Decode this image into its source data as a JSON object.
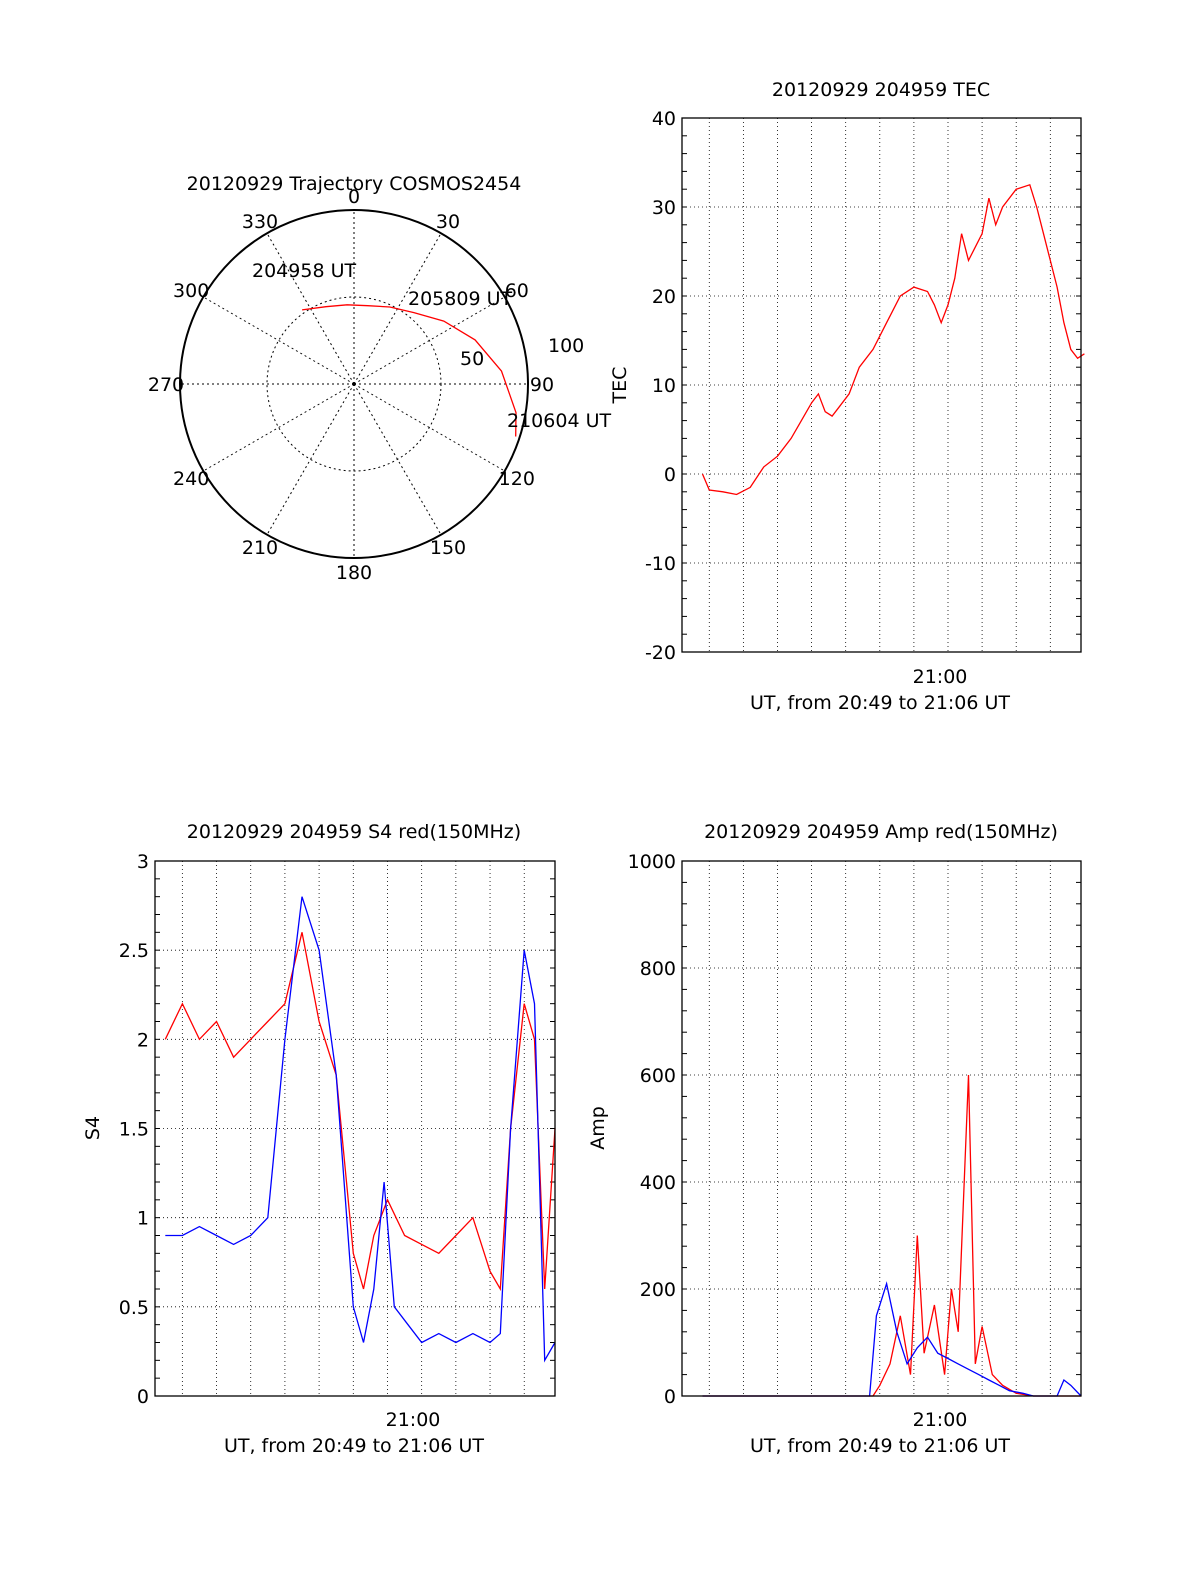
{
  "chart_data": [
    {
      "id": "polar",
      "type": "polar",
      "title": "20120929 Trajectory COSMOS2454",
      "azimuth_labels": [
        "0",
        "30",
        "60",
        "90",
        "120",
        "150",
        "180",
        "210",
        "240",
        "270",
        "300",
        "330"
      ],
      "elevation_labels": [
        "50",
        "100"
      ],
      "trajectory_color": "#ff0000",
      "trajectory": [
        {
          "az": 325,
          "el": 33
        },
        {
          "az": 340,
          "el": 30
        },
        {
          "az": 355,
          "el": 29
        },
        {
          "az": 10,
          "el": 29
        },
        {
          "az": 25,
          "el": 31
        },
        {
          "az": 40,
          "el": 34
        },
        {
          "az": 55,
          "el": 40
        },
        {
          "az": 70,
          "el": 47
        },
        {
          "az": 85,
          "el": 54
        },
        {
          "az": 100,
          "el": 60
        },
        {
          "az": 108,
          "el": 62
        }
      ],
      "annotations": [
        {
          "text": "204958 UT"
        },
        {
          "text": "205809 UT"
        },
        {
          "text": "210604 UT"
        }
      ]
    },
    {
      "id": "tec",
      "type": "line",
      "title": "20120929 204959 TEC",
      "xlabel": "UT, from 20:49 to 21:06 UT",
      "ylabel": "TEC",
      "xlim": [
        -5.8,
        5.9
      ],
      "ylim": [
        -20,
        40
      ],
      "ytick_labels": [
        "-20",
        "-10",
        "0",
        "10",
        "20",
        "30",
        "40"
      ],
      "xtick_label": "21:00",
      "grid": true,
      "series": [
        {
          "color": "#ff0000",
          "points": [
            [
              -5.2,
              0
            ],
            [
              -5.0,
              -1.8
            ],
            [
              -4.6,
              -2
            ],
            [
              -4.2,
              -2.3
            ],
            [
              -3.8,
              -1.5
            ],
            [
              -3.4,
              0.8
            ],
            [
              -3.0,
              2
            ],
            [
              -2.6,
              4
            ],
            [
              -2.3,
              6
            ],
            [
              -2.0,
              8
            ],
            [
              -1.8,
              9
            ],
            [
              -1.6,
              7
            ],
            [
              -1.4,
              6.5
            ],
            [
              -1.2,
              7.5
            ],
            [
              -0.9,
              9
            ],
            [
              -0.6,
              12
            ],
            [
              -0.2,
              14
            ],
            [
              0.2,
              17
            ],
            [
              0.6,
              20
            ],
            [
              1.0,
              21
            ],
            [
              1.4,
              20.5
            ],
            [
              1.6,
              19
            ],
            [
              1.8,
              17
            ],
            [
              2.0,
              19
            ],
            [
              2.2,
              22
            ],
            [
              2.4,
              27
            ],
            [
              2.6,
              24
            ],
            [
              3.0,
              27
            ],
            [
              3.2,
              31
            ],
            [
              3.4,
              28
            ],
            [
              3.6,
              30
            ],
            [
              4.0,
              32
            ],
            [
              4.4,
              32.5
            ],
            [
              4.6,
              30
            ],
            [
              4.8,
              27
            ],
            [
              5.0,
              24
            ],
            [
              5.2,
              21
            ],
            [
              5.4,
              17
            ],
            [
              5.6,
              14
            ],
            [
              5.8,
              13
            ],
            [
              6.0,
              13.5
            ]
          ]
        }
      ]
    },
    {
      "id": "s4",
      "type": "line",
      "title": "20120929 204959 S4 red(150MHz)",
      "xlabel": "UT, from 20:49 to 21:06 UT",
      "ylabel": "S4",
      "xlim": [
        -5.8,
        5.9
      ],
      "ylim": [
        0,
        3
      ],
      "ytick_labels": [
        "0",
        "0.5",
        "1",
        "1.5",
        "2",
        "2.5",
        "3"
      ],
      "xtick_label": "21:00",
      "grid": true,
      "series": [
        {
          "color": "#ff0000",
          "points": [
            [
              -5.5,
              2.0
            ],
            [
              -5.0,
              2.2
            ],
            [
              -4.5,
              2.0
            ],
            [
              -4.0,
              2.1
            ],
            [
              -3.5,
              1.9
            ],
            [
              -3.0,
              2.0
            ],
            [
              -2.5,
              2.1
            ],
            [
              -2.0,
              2.2
            ],
            [
              -1.5,
              2.6
            ],
            [
              -1.0,
              2.1
            ],
            [
              -0.5,
              1.8
            ],
            [
              -0.2,
              1.2
            ],
            [
              0.0,
              0.8
            ],
            [
              0.3,
              0.6
            ],
            [
              0.6,
              0.9
            ],
            [
              1.0,
              1.1
            ],
            [
              1.5,
              0.9
            ],
            [
              2.0,
              0.85
            ],
            [
              2.5,
              0.8
            ],
            [
              3.0,
              0.9
            ],
            [
              3.5,
              1.0
            ],
            [
              4.0,
              0.7
            ],
            [
              4.3,
              0.6
            ],
            [
              4.6,
              1.5
            ],
            [
              5.0,
              2.2
            ],
            [
              5.3,
              2.0
            ],
            [
              5.6,
              0.6
            ],
            [
              5.9,
              1.5
            ]
          ]
        },
        {
          "color": "#0000ff",
          "points": [
            [
              -5.5,
              0.9
            ],
            [
              -5.0,
              0.9
            ],
            [
              -4.5,
              0.95
            ],
            [
              -4.0,
              0.9
            ],
            [
              -3.5,
              0.85
            ],
            [
              -3.0,
              0.9
            ],
            [
              -2.5,
              1.0
            ],
            [
              -2.0,
              2.0
            ],
            [
              -1.5,
              2.8
            ],
            [
              -1.0,
              2.5
            ],
            [
              -0.5,
              1.8
            ],
            [
              0.0,
              0.5
            ],
            [
              0.3,
              0.3
            ],
            [
              0.6,
              0.6
            ],
            [
              0.9,
              1.2
            ],
            [
              1.2,
              0.5
            ],
            [
              1.6,
              0.4
            ],
            [
              2.0,
              0.3
            ],
            [
              2.5,
              0.35
            ],
            [
              3.0,
              0.3
            ],
            [
              3.5,
              0.35
            ],
            [
              4.0,
              0.3
            ],
            [
              4.3,
              0.35
            ],
            [
              4.6,
              1.5
            ],
            [
              5.0,
              2.5
            ],
            [
              5.3,
              2.2
            ],
            [
              5.6,
              0.2
            ],
            [
              5.9,
              0.3
            ]
          ]
        }
      ]
    },
    {
      "id": "amp",
      "type": "line",
      "title": "20120929 204959 Amp red(150MHz)",
      "xlabel": "UT, from 20:49 to 21:06 UT",
      "ylabel": "Amp",
      "xlim": [
        -5.8,
        5.9
      ],
      "ylim": [
        0,
        1000
      ],
      "ytick_labels": [
        "0",
        "200",
        "400",
        "600",
        "800",
        "1000"
      ],
      "xtick_label": "21:00",
      "grid": true,
      "series": [
        {
          "color": "#ff0000",
          "points": [
            [
              -5.2,
              0
            ],
            [
              -0.2,
              0
            ],
            [
              0.0,
              20
            ],
            [
              0.3,
              60
            ],
            [
              0.6,
              150
            ],
            [
              0.9,
              40
            ],
            [
              1.1,
              300
            ],
            [
              1.3,
              80
            ],
            [
              1.6,
              170
            ],
            [
              1.9,
              40
            ],
            [
              2.1,
              200
            ],
            [
              2.3,
              120
            ],
            [
              2.6,
              600
            ],
            [
              2.8,
              60
            ],
            [
              3.0,
              130
            ],
            [
              3.3,
              40
            ],
            [
              3.6,
              20
            ],
            [
              4.0,
              5
            ],
            [
              4.5,
              0
            ],
            [
              5.2,
              0
            ],
            [
              5.5,
              0
            ],
            [
              5.9,
              0
            ]
          ]
        },
        {
          "color": "#0000ff",
          "points": [
            [
              -5.2,
              0
            ],
            [
              -0.3,
              0
            ],
            [
              -0.1,
              150
            ],
            [
              0.2,
              210
            ],
            [
              0.5,
              120
            ],
            [
              0.8,
              60
            ],
            [
              1.1,
              90
            ],
            [
              1.4,
              110
            ],
            [
              1.7,
              80
            ],
            [
              2.0,
              70
            ],
            [
              2.3,
              60
            ],
            [
              2.6,
              50
            ],
            [
              2.9,
              40
            ],
            [
              3.2,
              30
            ],
            [
              3.5,
              20
            ],
            [
              3.8,
              10
            ],
            [
              4.2,
              5
            ],
            [
              4.5,
              0
            ],
            [
              5.2,
              0
            ],
            [
              5.4,
              30
            ],
            [
              5.6,
              20
            ],
            [
              5.9,
              0
            ]
          ]
        }
      ]
    }
  ]
}
